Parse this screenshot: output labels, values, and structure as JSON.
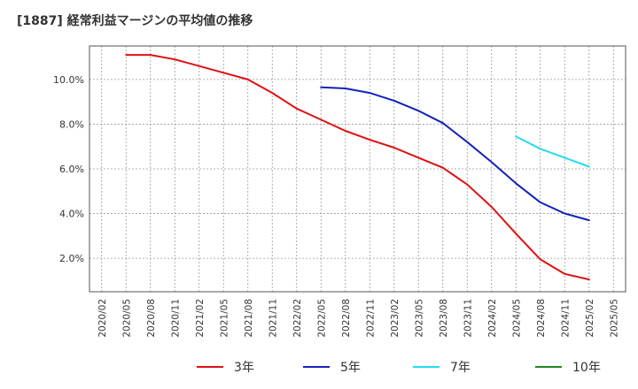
{
  "chart_data": {
    "type": "line",
    "title": "[1887]  経常利益マージンの平均値の推移",
    "xlabel": "",
    "ylabel": "",
    "x_ticks": [
      "2020/02",
      "2020/05",
      "2020/08",
      "2020/11",
      "2021/02",
      "2021/05",
      "2021/08",
      "2021/11",
      "2022/02",
      "2022/05",
      "2022/08",
      "2022/11",
      "2023/02",
      "2023/05",
      "2023/08",
      "2023/11",
      "2024/02",
      "2024/05",
      "2024/08",
      "2024/11",
      "2025/02",
      "2025/05"
    ],
    "y_ticks": [
      "2.0%",
      "4.0%",
      "6.0%",
      "8.0%",
      "10.0%"
    ],
    "ylim": [
      0.5,
      11.5
    ],
    "grid": true,
    "legend_position": "bottom",
    "series": [
      {
        "name": "3年",
        "color": "#dd1111",
        "x": [
          "2020/05",
          "2020/08",
          "2020/11",
          "2021/02",
          "2021/05",
          "2021/08",
          "2021/11",
          "2022/02",
          "2022/05",
          "2022/08",
          "2022/11",
          "2023/02",
          "2023/05",
          "2023/08",
          "2023/11",
          "2024/02",
          "2024/05",
          "2024/08",
          "2024/11",
          "2025/02"
        ],
        "values": [
          11.1,
          11.1,
          10.9,
          10.6,
          10.3,
          10.0,
          9.4,
          8.7,
          8.2,
          7.7,
          7.3,
          6.95,
          6.5,
          6.05,
          5.3,
          4.3,
          3.1,
          1.95,
          1.3,
          1.05
        ]
      },
      {
        "name": "5年",
        "color": "#1122bb",
        "x": [
          "2022/05",
          "2022/08",
          "2022/11",
          "2023/02",
          "2023/05",
          "2023/08",
          "2023/11",
          "2024/02",
          "2024/05",
          "2024/08",
          "2024/11",
          "2025/02"
        ],
        "values": [
          9.65,
          9.6,
          9.4,
          9.05,
          8.6,
          8.05,
          7.2,
          6.3,
          5.35,
          4.5,
          4.0,
          3.7
        ]
      },
      {
        "name": "7年",
        "color": "#22ddee",
        "x": [
          "2024/05",
          "2024/08",
          "2024/11",
          "2025/02"
        ],
        "values": [
          7.45,
          6.9,
          6.5,
          6.1
        ]
      },
      {
        "name": "10年",
        "color": "#228822",
        "x": [],
        "values": []
      }
    ]
  }
}
